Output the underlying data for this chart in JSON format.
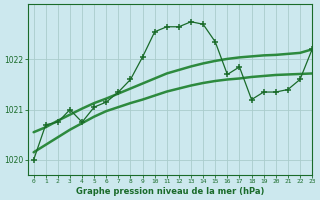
{
  "bg_color": "#cce8ee",
  "grid_color": "#aacccc",
  "line_color_main": "#1a6b2a",
  "line_color_trend1": "#2d8a3e",
  "line_color_trend2": "#2d8a3e",
  "title": "Graphe pression niveau de la mer (hPa)",
  "xlim": [
    -0.5,
    23
  ],
  "ylim": [
    1019.7,
    1023.1
  ],
  "yticks": [
    1020,
    1021,
    1022
  ],
  "xticks": [
    0,
    1,
    2,
    3,
    4,
    5,
    6,
    7,
    8,
    9,
    10,
    11,
    12,
    13,
    14,
    15,
    16,
    17,
    18,
    19,
    20,
    21,
    22,
    23
  ],
  "hours": [
    0,
    1,
    2,
    3,
    4,
    5,
    6,
    7,
    8,
    9,
    10,
    11,
    12,
    13,
    14,
    15,
    16,
    17,
    18,
    19,
    20,
    21,
    22,
    23
  ],
  "pressure_main": [
    1020.0,
    1020.7,
    1020.75,
    1021.0,
    1020.75,
    1021.05,
    1021.15,
    1021.35,
    1021.6,
    1022.05,
    1022.55,
    1022.65,
    1022.65,
    1022.75,
    1022.7,
    1022.35,
    1021.7,
    1021.85,
    1021.2,
    1021.35,
    1021.35,
    1021.4,
    1021.6,
    1022.2
  ],
  "pressure_trend1": [
    1020.55,
    1020.65,
    1020.78,
    1020.9,
    1021.02,
    1021.13,
    1021.22,
    1021.32,
    1021.42,
    1021.52,
    1021.62,
    1021.72,
    1021.79,
    1021.86,
    1021.92,
    1021.97,
    1022.01,
    1022.04,
    1022.06,
    1022.08,
    1022.09,
    1022.11,
    1022.13,
    1022.2
  ],
  "pressure_trend2": [
    1020.15,
    1020.3,
    1020.45,
    1020.6,
    1020.73,
    1020.86,
    1020.97,
    1021.05,
    1021.13,
    1021.2,
    1021.28,
    1021.36,
    1021.42,
    1021.48,
    1021.53,
    1021.57,
    1021.6,
    1021.62,
    1021.65,
    1021.67,
    1021.69,
    1021.7,
    1021.71,
    1021.72
  ]
}
